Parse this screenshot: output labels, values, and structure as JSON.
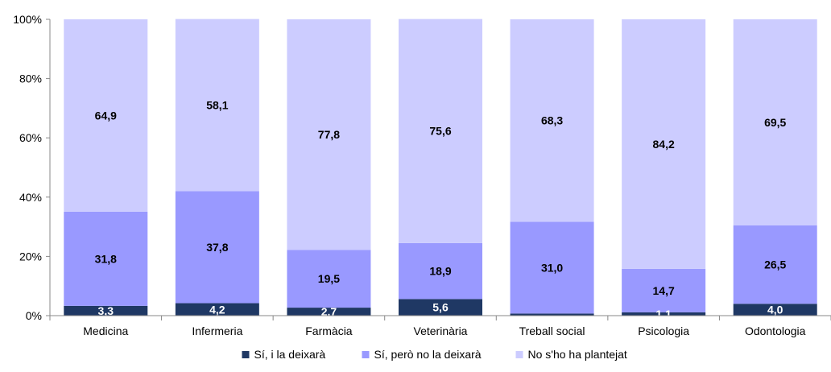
{
  "chart_data": {
    "type": "bar",
    "stacked": true,
    "categories": [
      "Medicina",
      "Infermeria",
      "Farmàcia",
      "Veterinària",
      "Treball social",
      "Psicologia",
      "Odontologia"
    ],
    "series": [
      {
        "name": "Sí, i la deixarà",
        "color": "#1f3864",
        "values": [
          3.3,
          4.2,
          2.7,
          5.6,
          0.7,
          1.1,
          4.0
        ],
        "labels": [
          "3,3",
          "4,2",
          "2,7",
          "5,6",
          "",
          "1,1",
          "4,0"
        ]
      },
      {
        "name": "Sí, però no la deixarà",
        "color": "#9999ff",
        "values": [
          31.8,
          37.8,
          19.5,
          18.9,
          31.0,
          14.7,
          26.5
        ],
        "labels": [
          "31,8",
          "37,8",
          "19,5",
          "18,9",
          "31,0",
          "14,7",
          "26,5"
        ]
      },
      {
        "name": "No s'ho ha plantejat",
        "color": "#ccccff",
        "values": [
          64.9,
          58.1,
          77.8,
          75.6,
          68.3,
          84.2,
          69.5
        ],
        "labels": [
          "64,9",
          "58,1",
          "77,8",
          "75,6",
          "68,3",
          "84,2",
          "69,5"
        ]
      }
    ],
    "y_ticks": [
      "0%",
      "20%",
      "40%",
      "60%",
      "80%",
      "100%"
    ],
    "ylim": [
      0,
      100
    ],
    "grid": false,
    "legend": "bottom-center"
  }
}
